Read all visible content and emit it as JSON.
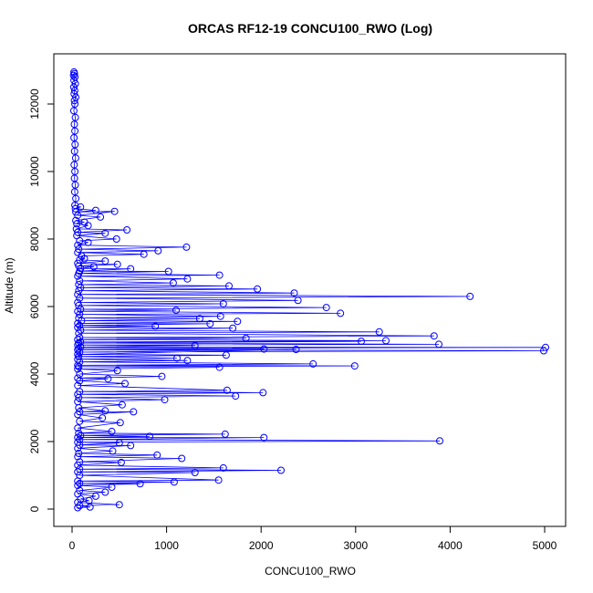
{
  "chart_data": {
    "type": "line",
    "title": "ORCAS RF12-19 CONCU100_RWO (Log)",
    "xlabel": "CONCU100_RWO",
    "ylabel": "Altitude (m)",
    "xlim": [
      0,
      5000
    ],
    "ylim": [
      0,
      13000
    ],
    "x_ticks": [
      0,
      1000,
      2000,
      3000,
      4000,
      5000
    ],
    "y_ticks": [
      0,
      2000,
      4000,
      6000,
      8000,
      10000,
      12000
    ],
    "x_tick_labels": [
      "0",
      "1000",
      "2000",
      "3000",
      "4000",
      "5000"
    ],
    "y_tick_labels": [
      "0",
      "2000",
      "4000",
      "6000",
      "8000",
      "10000",
      "12000"
    ],
    "grid": false,
    "series": [
      {
        "color": "#0000ff",
        "marker": "open-circle",
        "points": [
          [
            20,
            12950
          ],
          [
            25,
            12900
          ],
          [
            15,
            12850
          ],
          [
            30,
            12800
          ],
          [
            20,
            12700
          ],
          [
            35,
            12600
          ],
          [
            18,
            12500
          ],
          [
            28,
            12400
          ],
          [
            22,
            12300
          ],
          [
            40,
            12200
          ],
          [
            25,
            12100
          ],
          [
            30,
            12000
          ],
          [
            18,
            11800
          ],
          [
            35,
            11600
          ],
          [
            24,
            11400
          ],
          [
            30,
            11200
          ],
          [
            20,
            11000
          ],
          [
            32,
            10800
          ],
          [
            26,
            10600
          ],
          [
            38,
            10400
          ],
          [
            22,
            10200
          ],
          [
            30,
            10000
          ],
          [
            25,
            9800
          ],
          [
            34,
            9600
          ],
          [
            28,
            9400
          ],
          [
            40,
            9200
          ],
          [
            30,
            9000
          ],
          [
            90,
            8950
          ],
          [
            35,
            8900
          ],
          [
            250,
            8850
          ],
          [
            40,
            8800
          ],
          [
            450,
            8820
          ],
          [
            60,
            8700
          ],
          [
            300,
            8650
          ],
          [
            40,
            8550
          ],
          [
            130,
            8500
          ],
          [
            50,
            8450
          ],
          [
            170,
            8400
          ],
          [
            45,
            8300
          ],
          [
            580,
            8270
          ],
          [
            60,
            8200
          ],
          [
            350,
            8170
          ],
          [
            50,
            8100
          ],
          [
            470,
            8000
          ],
          [
            80,
            7950
          ],
          [
            170,
            7900
          ],
          [
            60,
            7820
          ],
          [
            1210,
            7760
          ],
          [
            70,
            7700
          ],
          [
            910,
            7650
          ],
          [
            60,
            7600
          ],
          [
            760,
            7550
          ],
          [
            100,
            7500
          ],
          [
            130,
            7420
          ],
          [
            80,
            7380
          ],
          [
            350,
            7350
          ],
          [
            60,
            7280
          ],
          [
            480,
            7250
          ],
          [
            70,
            7200
          ],
          [
            230,
            7180
          ],
          [
            90,
            7130
          ],
          [
            620,
            7120
          ],
          [
            80,
            7050
          ],
          [
            1020,
            7040
          ],
          [
            70,
            6980
          ],
          [
            1560,
            6930
          ],
          [
            60,
            6900
          ],
          [
            1220,
            6820
          ],
          [
            80,
            6760
          ],
          [
            1070,
            6700
          ],
          [
            70,
            6650
          ],
          [
            1660,
            6610
          ],
          [
            90,
            6560
          ],
          [
            1960,
            6520
          ],
          [
            70,
            6470
          ],
          [
            2350,
            6400
          ],
          [
            60,
            6360
          ],
          [
            4210,
            6300
          ],
          [
            80,
            6250
          ],
          [
            2390,
            6180
          ],
          [
            60,
            6120
          ],
          [
            1600,
            6080
          ],
          [
            70,
            6030
          ],
          [
            2690,
            5970
          ],
          [
            90,
            5920
          ],
          [
            1100,
            5890
          ],
          [
            60,
            5860
          ],
          [
            2840,
            5800
          ],
          [
            80,
            5770
          ],
          [
            1570,
            5710
          ],
          [
            70,
            5660
          ],
          [
            1350,
            5640
          ],
          [
            100,
            5580
          ],
          [
            1750,
            5560
          ],
          [
            60,
            5500
          ],
          [
            1460,
            5490
          ],
          [
            80,
            5440
          ],
          [
            880,
            5420
          ],
          [
            60,
            5380
          ],
          [
            1700,
            5360
          ],
          [
            90,
            5300
          ],
          [
            3250,
            5250
          ],
          [
            70,
            5210
          ],
          [
            3830,
            5130
          ],
          [
            80,
            5080
          ],
          [
            1840,
            5060
          ],
          [
            60,
            5020
          ],
          [
            3320,
            4990
          ],
          [
            90,
            4950
          ],
          [
            3060,
            4970
          ],
          [
            70,
            4920
          ],
          [
            3880,
            4880
          ],
          [
            60,
            4860
          ],
          [
            1300,
            4840
          ],
          [
            90,
            4800
          ],
          [
            5010,
            4790
          ],
          [
            70,
            4760
          ],
          [
            2030,
            4740
          ],
          [
            60,
            4720
          ],
          [
            4990,
            4690
          ],
          [
            80,
            4650
          ],
          [
            2370,
            4730
          ],
          [
            60,
            4580
          ],
          [
            1630,
            4560
          ],
          [
            70,
            4520
          ],
          [
            1110,
            4470
          ],
          [
            60,
            4440
          ],
          [
            1220,
            4400
          ],
          [
            80,
            4360
          ],
          [
            2550,
            4300
          ],
          [
            60,
            4260
          ],
          [
            2990,
            4240
          ],
          [
            70,
            4220
          ],
          [
            1560,
            4200
          ],
          [
            60,
            4150
          ],
          [
            480,
            4100
          ],
          [
            80,
            4000
          ],
          [
            950,
            3930
          ],
          [
            60,
            3880
          ],
          [
            380,
            3860
          ],
          [
            80,
            3800
          ],
          [
            560,
            3720
          ],
          [
            60,
            3660
          ],
          [
            1640,
            3520
          ],
          [
            80,
            3480
          ],
          [
            2020,
            3450
          ],
          [
            60,
            3400
          ],
          [
            1730,
            3350
          ],
          [
            70,
            3300
          ],
          [
            980,
            3240
          ],
          [
            60,
            3180
          ],
          [
            530,
            3090
          ],
          [
            70,
            3000
          ],
          [
            350,
            2910
          ],
          [
            80,
            2880
          ],
          [
            650,
            2880
          ],
          [
            60,
            2800
          ],
          [
            320,
            2700
          ],
          [
            80,
            2600
          ],
          [
            510,
            2560
          ],
          [
            60,
            2400
          ],
          [
            420,
            2300
          ],
          [
            70,
            2250
          ],
          [
            1620,
            2220
          ],
          [
            90,
            2180
          ],
          [
            820,
            2150
          ],
          [
            60,
            2120
          ],
          [
            2030,
            2120
          ],
          [
            80,
            2060
          ],
          [
            3890,
            2020
          ],
          [
            60,
            1980
          ],
          [
            500,
            1960
          ],
          [
            80,
            1900
          ],
          [
            620,
            1880
          ],
          [
            60,
            1800
          ],
          [
            430,
            1720
          ],
          [
            70,
            1650
          ],
          [
            900,
            1600
          ],
          [
            60,
            1550
          ],
          [
            1160,
            1500
          ],
          [
            80,
            1400
          ],
          [
            520,
            1380
          ],
          [
            60,
            1300
          ],
          [
            1600,
            1220
          ],
          [
            80,
            1180
          ],
          [
            2210,
            1150
          ],
          [
            60,
            1100
          ],
          [
            1300,
            1080
          ],
          [
            80,
            1000
          ],
          [
            1550,
            860
          ],
          [
            60,
            830
          ],
          [
            1080,
            800
          ],
          [
            80,
            760
          ],
          [
            720,
            750
          ],
          [
            60,
            700
          ],
          [
            420,
            650
          ],
          [
            80,
            550
          ],
          [
            350,
            500
          ],
          [
            60,
            450
          ],
          [
            250,
            380
          ],
          [
            90,
            300
          ],
          [
            180,
            250
          ],
          [
            60,
            200
          ],
          [
            500,
            130
          ],
          [
            80,
            100
          ],
          [
            190,
            60
          ],
          [
            60,
            40
          ]
        ]
      }
    ]
  }
}
